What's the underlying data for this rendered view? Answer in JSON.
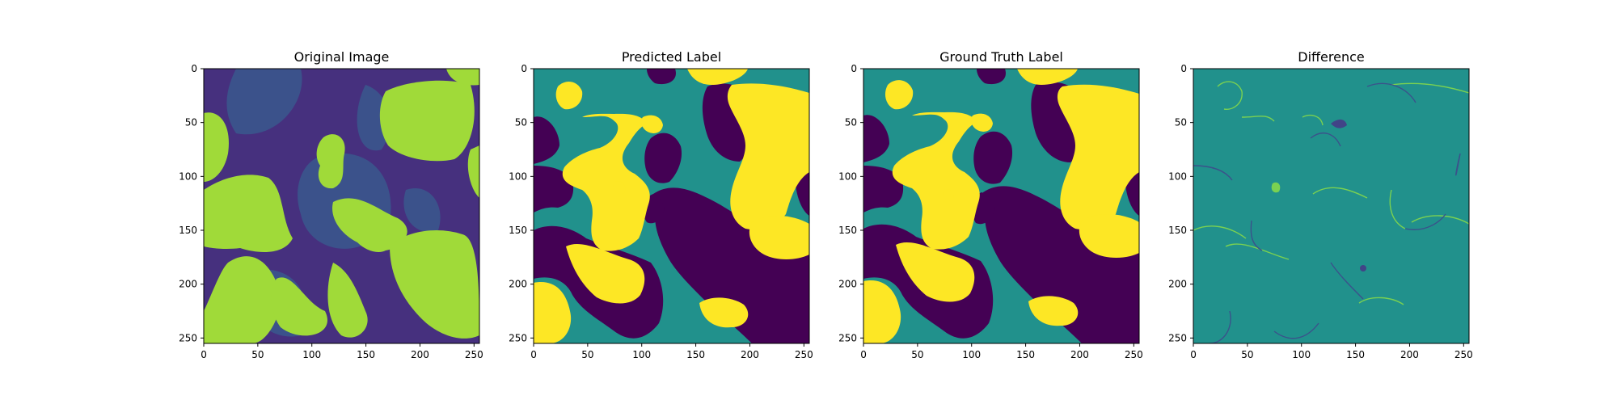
{
  "colors": {
    "dark": "#440154",
    "mid": "#21918c",
    "bright": "#fde725",
    "orig_bg": "#46307e",
    "orig_mid": "#3b528b",
    "orig_bright": "#a0da39",
    "frame": "#000000"
  },
  "chart_data": [
    {
      "type": "heatmap",
      "title": "Original Image",
      "xlabel": "",
      "ylabel": "",
      "xlim": [
        0,
        255
      ],
      "ylim": [
        255,
        0
      ],
      "xticks": [
        0,
        50,
        100,
        150,
        200,
        250
      ],
      "yticks": [
        0,
        50,
        100,
        150,
        200,
        250
      ],
      "grid": false,
      "colormap": "viridis"
    },
    {
      "type": "heatmap",
      "title": "Predicted Label",
      "xlabel": "",
      "ylabel": "",
      "xlim": [
        0,
        255
      ],
      "ylim": [
        255,
        0
      ],
      "xticks": [
        0,
        50,
        100,
        150,
        200,
        250
      ],
      "yticks": [
        0,
        50,
        100,
        150,
        200,
        250
      ],
      "grid": false,
      "colormap": "viridis"
    },
    {
      "type": "heatmap",
      "title": "Ground Truth Label",
      "xlabel": "",
      "ylabel": "",
      "xlim": [
        0,
        255
      ],
      "ylim": [
        255,
        0
      ],
      "xticks": [
        0,
        50,
        100,
        150,
        200,
        250
      ],
      "yticks": [
        0,
        50,
        100,
        150,
        200,
        250
      ],
      "grid": false,
      "colormap": "viridis"
    },
    {
      "type": "heatmap",
      "title": "Difference",
      "xlabel": "",
      "ylabel": "",
      "xlim": [
        0,
        255
      ],
      "ylim": [
        255,
        0
      ],
      "xticks": [
        0,
        50,
        100,
        150,
        200,
        250
      ],
      "yticks": [
        0,
        50,
        100,
        150,
        200,
        250
      ],
      "grid": false,
      "colormap": "viridis"
    }
  ]
}
